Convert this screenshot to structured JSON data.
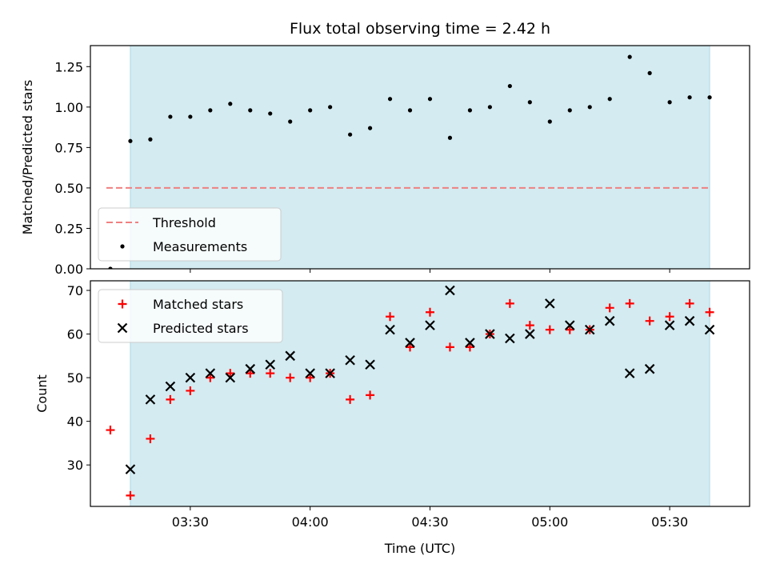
{
  "figure": {
    "title": "Flux total observing time = 2.42 h",
    "xlabel": "Time (UTC)"
  },
  "colors": {
    "shade": "#d3ebf1",
    "shade_edge": "#add8e6",
    "threshold": "#f08080",
    "measurement": "#000000",
    "matched": "#ff0000",
    "predicted": "#000000"
  },
  "chart_data": [
    {
      "type": "scatter",
      "panel": "top",
      "title": "Flux total observing time = 2.42 h",
      "xlabel": "",
      "ylabel": "Matched/Predicted stars",
      "xlim_minutes": [
        185,
        350
      ],
      "ylim": [
        0,
        1.38
      ],
      "yticks": [
        0.0,
        0.25,
        0.5,
        0.75,
        1.0,
        1.25
      ],
      "ytick_labels": [
        "0.00",
        "0.25",
        "0.50",
        "0.75",
        "1.00",
        "1.25"
      ],
      "shaded_span": [
        "03:15",
        "05:40"
      ],
      "threshold": {
        "name": "Threshold",
        "value": 0.5,
        "x_start": "03:09",
        "x_end": "05:40",
        "style": "dashed"
      },
      "legend": {
        "placement": "lower-left",
        "entries": [
          "Threshold",
          "Measurements"
        ]
      },
      "series": [
        {
          "name": "Measurements",
          "marker": "dot",
          "x": [
            "03:10",
            "03:15",
            "03:20",
            "03:25",
            "03:30",
            "03:35",
            "03:40",
            "03:45",
            "03:50",
            "03:55",
            "04:00",
            "04:05",
            "04:10",
            "04:15",
            "04:20",
            "04:25",
            "04:30",
            "04:35",
            "04:40",
            "04:45",
            "04:50",
            "04:55",
            "05:00",
            "05:05",
            "05:10",
            "05:15",
            "05:20",
            "05:25",
            "05:30",
            "05:35",
            "05:40"
          ],
          "y": [
            0.0,
            0.79,
            0.8,
            0.94,
            0.94,
            0.98,
            1.02,
            0.98,
            0.96,
            0.91,
            0.98,
            1.0,
            0.83,
            0.87,
            1.05,
            0.98,
            1.05,
            0.81,
            0.98,
            1.0,
            1.13,
            1.03,
            0.91,
            0.98,
            1.0,
            1.05,
            1.31,
            1.21,
            1.03,
            1.06,
            1.06
          ]
        }
      ]
    },
    {
      "type": "scatter",
      "panel": "bottom",
      "xlabel": "Time (UTC)",
      "ylabel": "Count",
      "xlim_minutes": [
        185,
        350
      ],
      "ylim": [
        20.5,
        72.2
      ],
      "yticks": [
        30,
        40,
        50,
        60,
        70
      ],
      "ytick_labels": [
        "30",
        "40",
        "50",
        "60",
        "70"
      ],
      "xticks": [
        "03:30",
        "04:00",
        "04:30",
        "05:00",
        "05:30"
      ],
      "shaded_span": [
        "03:15",
        "05:40"
      ],
      "legend": {
        "placement": "upper-left",
        "entries": [
          "Matched stars",
          "Predicted stars"
        ]
      },
      "series": [
        {
          "name": "Matched stars",
          "marker": "plus",
          "x": [
            "03:10",
            "03:15",
            "03:20",
            "03:25",
            "03:30",
            "03:35",
            "03:40",
            "03:45",
            "03:50",
            "03:55",
            "04:00",
            "04:05",
            "04:10",
            "04:15",
            "04:20",
            "04:25",
            "04:30",
            "04:35",
            "04:40",
            "04:45",
            "04:50",
            "04:55",
            "05:00",
            "05:05",
            "05:10",
            "05:15",
            "05:20",
            "05:25",
            "05:30",
            "05:35",
            "05:40"
          ],
          "y": [
            38,
            23,
            36,
            45,
            47,
            50,
            51,
            51,
            51,
            50,
            50,
            51,
            45,
            46,
            64,
            57,
            65,
            57,
            57,
            60,
            67,
            62,
            61,
            61,
            61,
            66,
            67,
            63,
            64,
            67,
            65
          ]
        },
        {
          "name": "Predicted stars",
          "marker": "x",
          "x": [
            "03:15",
            "03:20",
            "03:25",
            "03:30",
            "03:35",
            "03:40",
            "03:45",
            "03:50",
            "03:55",
            "04:00",
            "04:05",
            "04:10",
            "04:15",
            "04:20",
            "04:25",
            "04:30",
            "04:35",
            "04:40",
            "04:45",
            "04:50",
            "04:55",
            "05:00",
            "05:05",
            "05:10",
            "05:15",
            "05:20",
            "05:25",
            "05:30",
            "05:35",
            "05:40"
          ],
          "y": [
            29,
            45,
            48,
            50,
            51,
            50,
            52,
            53,
            55,
            51,
            51,
            54,
            53,
            61,
            58,
            62,
            70,
            58,
            60,
            59,
            60,
            67,
            62,
            61,
            63,
            51,
            52,
            62,
            63,
            61
          ]
        }
      ]
    }
  ]
}
